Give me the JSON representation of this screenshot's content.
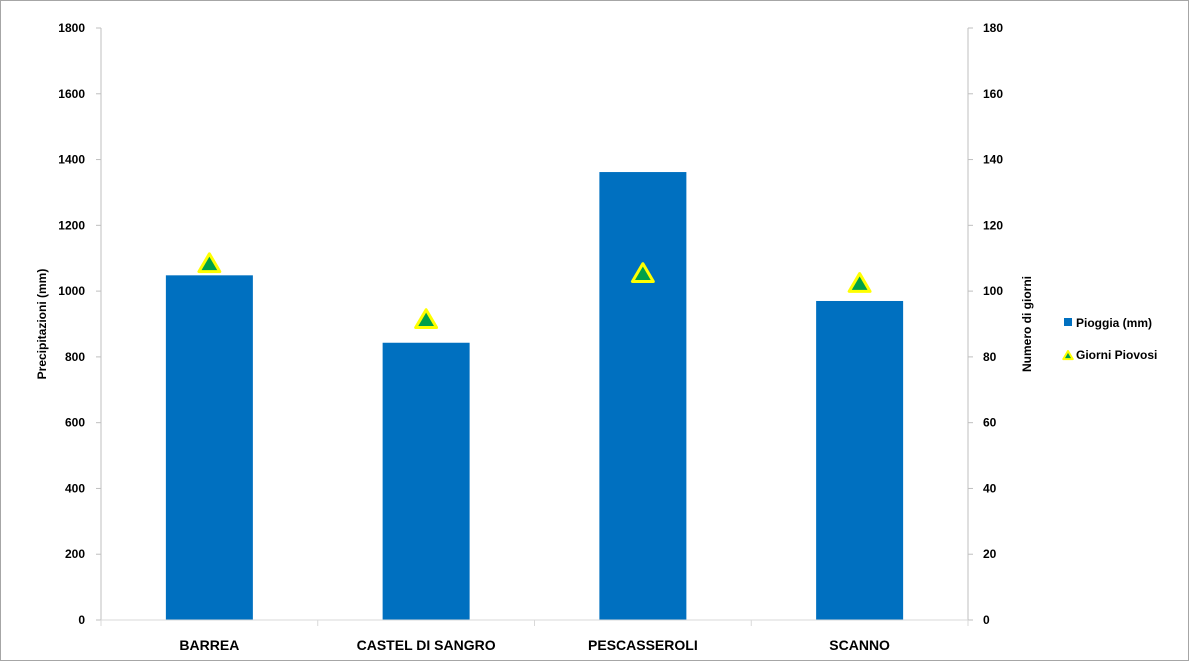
{
  "chart_data": {
    "type": "bar",
    "categories": [
      "BARREA",
      "CASTEL DI SANGRO",
      "PESCASSEROLI",
      "SCANNO"
    ],
    "series": [
      {
        "name": "Pioggia (mm)",
        "type": "bar",
        "axis": "left",
        "values": [
          1048,
          843,
          1362,
          970
        ],
        "color": "#0070c0"
      },
      {
        "name": "Giorni Piovosi",
        "type": "scatter",
        "marker": "triangle",
        "axis": "right",
        "values": [
          108,
          91,
          105,
          102
        ],
        "color": "#00a04a",
        "edge_color": "#ffff00"
      }
    ],
    "ylabel": "Precipitazioni (mm)",
    "ylabel_right": "Numero di giorni",
    "ylim": [
      0,
      1800
    ],
    "ylim_right": [
      0,
      180
    ],
    "yticks": [
      "0",
      "200",
      "400",
      "600",
      "800",
      "1000",
      "1200",
      "1400",
      "1600",
      "1800"
    ],
    "yticks_right": [
      "0",
      "20",
      "40",
      "60",
      "80",
      "100",
      "120",
      "140",
      "160",
      "180"
    ],
    "grid": false,
    "legend_position": "right"
  }
}
